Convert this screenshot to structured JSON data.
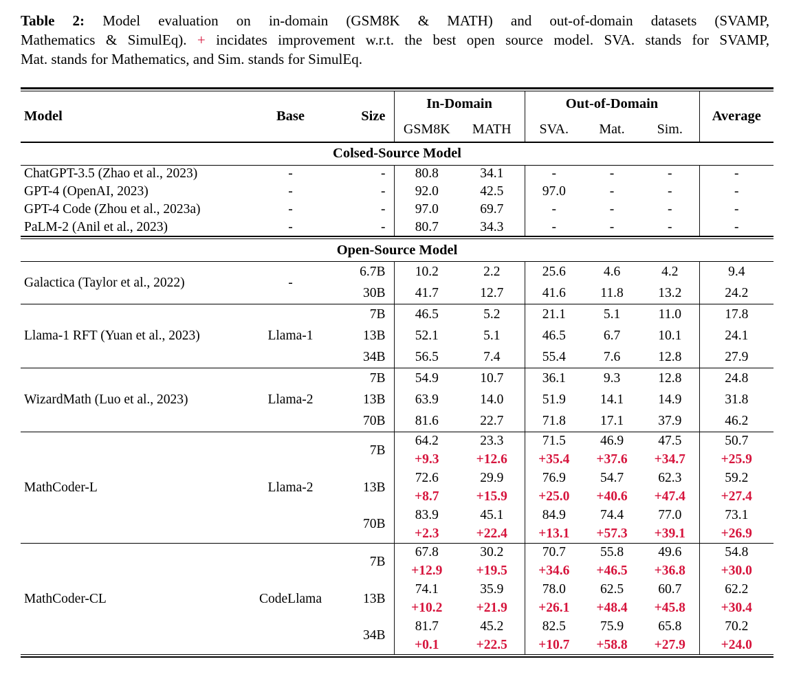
{
  "colors": {
    "accent_red": "#d6143c",
    "text": "#000000",
    "background": "#ffffff"
  },
  "caption": {
    "label": "Table 2:",
    "line1": "Model evaluation on in-domain (GSM8K & MATH) and out-of-domain datasets (SVAMP,",
    "line2_pre": "Mathematics & SimulEq).",
    "plus": "+",
    "line2_post": "incidates improvement w.r.t. the best open source model. SVA. stands for SVAMP,",
    "line3": "Mat. stands for Mathematics, and Sim. stands for SimulEq."
  },
  "table": {
    "headers": {
      "model": "Model",
      "base": "Base",
      "size": "Size",
      "in_domain": "In-Domain",
      "out_of_domain": "Out-of-Domain",
      "average": "Average",
      "sub": [
        "GSM8K",
        "MATH",
        "SVA.",
        "Mat.",
        "Sim."
      ]
    },
    "sections": [
      {
        "title": "Colsed-Source Model",
        "groups": [
          {
            "model": "ChatGPT-3.5 (Zhao et al., 2023)",
            "base": "-",
            "rows": [
              {
                "size": "-",
                "values": [
                  "80.8",
                  "34.1",
                  "-",
                  "-",
                  "-",
                  "-"
                ]
              }
            ]
          },
          {
            "model": "GPT-4 (OpenAI, 2023)",
            "base": "-",
            "rows": [
              {
                "size": "-",
                "values": [
                  "92.0",
                  "42.5",
                  "97.0",
                  "-",
                  "-",
                  "-"
                ]
              }
            ]
          },
          {
            "model": "GPT-4 Code (Zhou et al., 2023a)",
            "base": "-",
            "rows": [
              {
                "size": "-",
                "values": [
                  "97.0",
                  "69.7",
                  "-",
                  "-",
                  "-",
                  "-"
                ]
              }
            ]
          },
          {
            "model": "PaLM-2 (Anil et al., 2023)",
            "base": "-",
            "rows": [
              {
                "size": "-",
                "values": [
                  "80.7",
                  "34.3",
                  "-",
                  "-",
                  "-",
                  "-"
                ]
              }
            ]
          }
        ]
      },
      {
        "title": "Open-Source Model",
        "groups": [
          {
            "model": "Galactica (Taylor et al., 2022)",
            "base": "-",
            "rows": [
              {
                "size": "6.7B",
                "values": [
                  "10.2",
                  "2.2",
                  "25.6",
                  "4.6",
                  "4.2",
                  "9.4"
                ]
              },
              {
                "size": "30B",
                "values": [
                  "41.7",
                  "12.7",
                  "41.6",
                  "11.8",
                  "13.2",
                  "24.2"
                ]
              }
            ]
          },
          {
            "model": "Llama-1 RFT (Yuan et al., 2023)",
            "base": "Llama-1",
            "rows": [
              {
                "size": "7B",
                "values": [
                  "46.5",
                  "5.2",
                  "21.1",
                  "5.1",
                  "11.0",
                  "17.8"
                ]
              },
              {
                "size": "13B",
                "values": [
                  "52.1",
                  "5.1",
                  "46.5",
                  "6.7",
                  "10.1",
                  "24.1"
                ]
              },
              {
                "size": "34B",
                "values": [
                  "56.5",
                  "7.4",
                  "55.4",
                  "7.6",
                  "12.8",
                  "27.9"
                ]
              }
            ]
          },
          {
            "model": "WizardMath (Luo et al., 2023)",
            "base": "Llama-2",
            "rows": [
              {
                "size": "7B",
                "values": [
                  "54.9",
                  "10.7",
                  "36.1",
                  "9.3",
                  "12.8",
                  "24.8"
                ]
              },
              {
                "size": "13B",
                "values": [
                  "63.9",
                  "14.0",
                  "51.9",
                  "14.1",
                  "14.9",
                  "31.8"
                ]
              },
              {
                "size": "70B",
                "values": [
                  "81.6",
                  "22.7",
                  "71.8",
                  "17.1",
                  "37.9",
                  "46.2"
                ]
              }
            ]
          },
          {
            "model": "MathCoder-L",
            "base": "Llama-2",
            "rows": [
              {
                "size": "7B",
                "values": [
                  "64.2",
                  "23.3",
                  "71.5",
                  "46.9",
                  "47.5",
                  "50.7"
                ],
                "deltas": [
                  "+9.3",
                  "+12.6",
                  "+35.4",
                  "+37.6",
                  "+34.7",
                  "+25.9"
                ]
              },
              {
                "size": "13B",
                "values": [
                  "72.6",
                  "29.9",
                  "76.9",
                  "54.7",
                  "62.3",
                  "59.2"
                ],
                "deltas": [
                  "+8.7",
                  "+15.9",
                  "+25.0",
                  "+40.6",
                  "+47.4",
                  "+27.4"
                ]
              },
              {
                "size": "70B",
                "values": [
                  "83.9",
                  "45.1",
                  "84.9",
                  "74.4",
                  "77.0",
                  "73.1"
                ],
                "deltas": [
                  "+2.3",
                  "+22.4",
                  "+13.1",
                  "+57.3",
                  "+39.1",
                  "+26.9"
                ]
              }
            ]
          },
          {
            "model": "MathCoder-CL",
            "base": "CodeLlama",
            "rows": [
              {
                "size": "7B",
                "values": [
                  "67.8",
                  "30.2",
                  "70.7",
                  "55.8",
                  "49.6",
                  "54.8"
                ],
                "deltas": [
                  "+12.9",
                  "+19.5",
                  "+34.6",
                  "+46.5",
                  "+36.8",
                  "+30.0"
                ]
              },
              {
                "size": "13B",
                "values": [
                  "74.1",
                  "35.9",
                  "78.0",
                  "62.5",
                  "60.7",
                  "62.2"
                ],
                "deltas": [
                  "+10.2",
                  "+21.9",
                  "+26.1",
                  "+48.4",
                  "+45.8",
                  "+30.4"
                ]
              },
              {
                "size": "34B",
                "values": [
                  "81.7",
                  "45.2",
                  "82.5",
                  "75.9",
                  "65.8",
                  "70.2"
                ],
                "deltas": [
                  "+0.1",
                  "+22.5",
                  "+10.7",
                  "+58.8",
                  "+27.9",
                  "+24.0"
                ]
              }
            ]
          }
        ]
      }
    ]
  }
}
